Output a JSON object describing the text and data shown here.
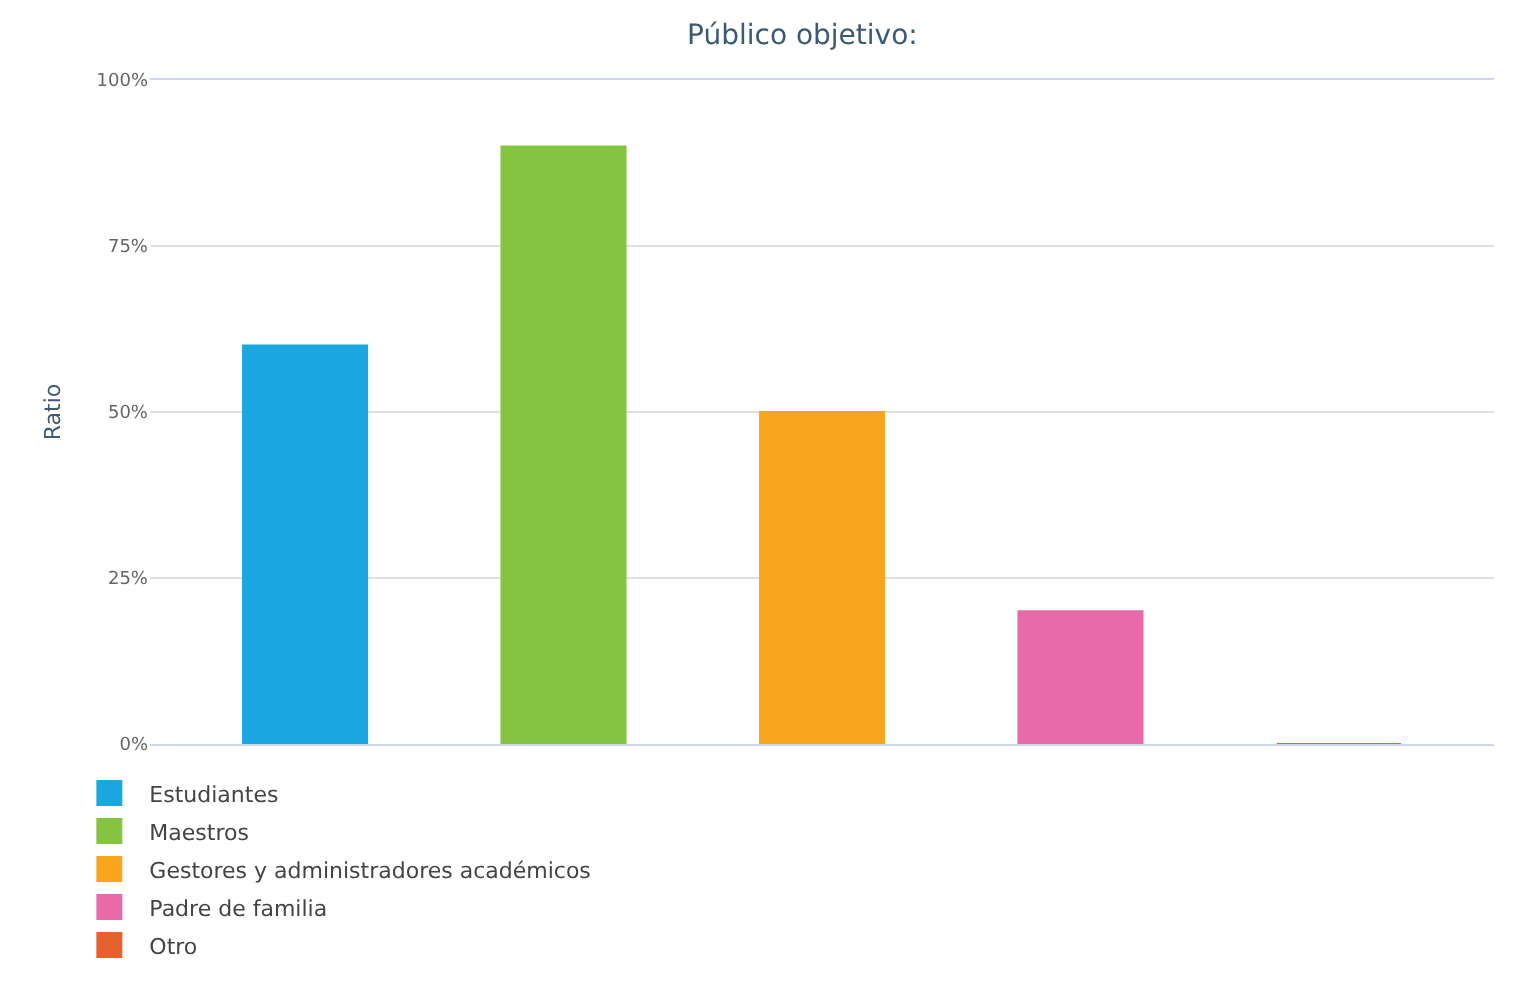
{
  "chart_data": {
    "type": "bar",
    "title": "Público objetivo:",
    "ylabel": "Ratio",
    "categories": [
      null,
      null,
      null,
      null,
      null
    ],
    "series": [
      {
        "name": "Estudiantes",
        "color": "#1ba8e0",
        "values": [
          60,
          null,
          null,
          null,
          null
        ]
      },
      {
        "name": "Maestros",
        "color": "#85c441",
        "values": [
          null,
          90,
          null,
          null,
          null
        ]
      },
      {
        "name": "Gestores y administradores académicos",
        "color": "#f9a61f",
        "values": [
          null,
          null,
          50,
          null,
          null
        ]
      },
      {
        "name": "Padre de familia",
        "color": "#e86aa8",
        "values": [
          null,
          null,
          null,
          20,
          null
        ]
      },
      {
        "name": "Otro",
        "color": "#e5622e",
        "values": [
          null,
          null,
          null,
          null,
          0
        ]
      }
    ],
    "ylim": [
      0,
      100
    ],
    "yticks": [
      {
        "value": 0,
        "label": "0%"
      },
      {
        "value": 25,
        "label": "25%"
      },
      {
        "value": 50,
        "label": "50%"
      },
      {
        "value": 75,
        "label": "75%"
      },
      {
        "value": 100,
        "label": "100%"
      }
    ],
    "grid": "y",
    "legend": "bottom left"
  }
}
